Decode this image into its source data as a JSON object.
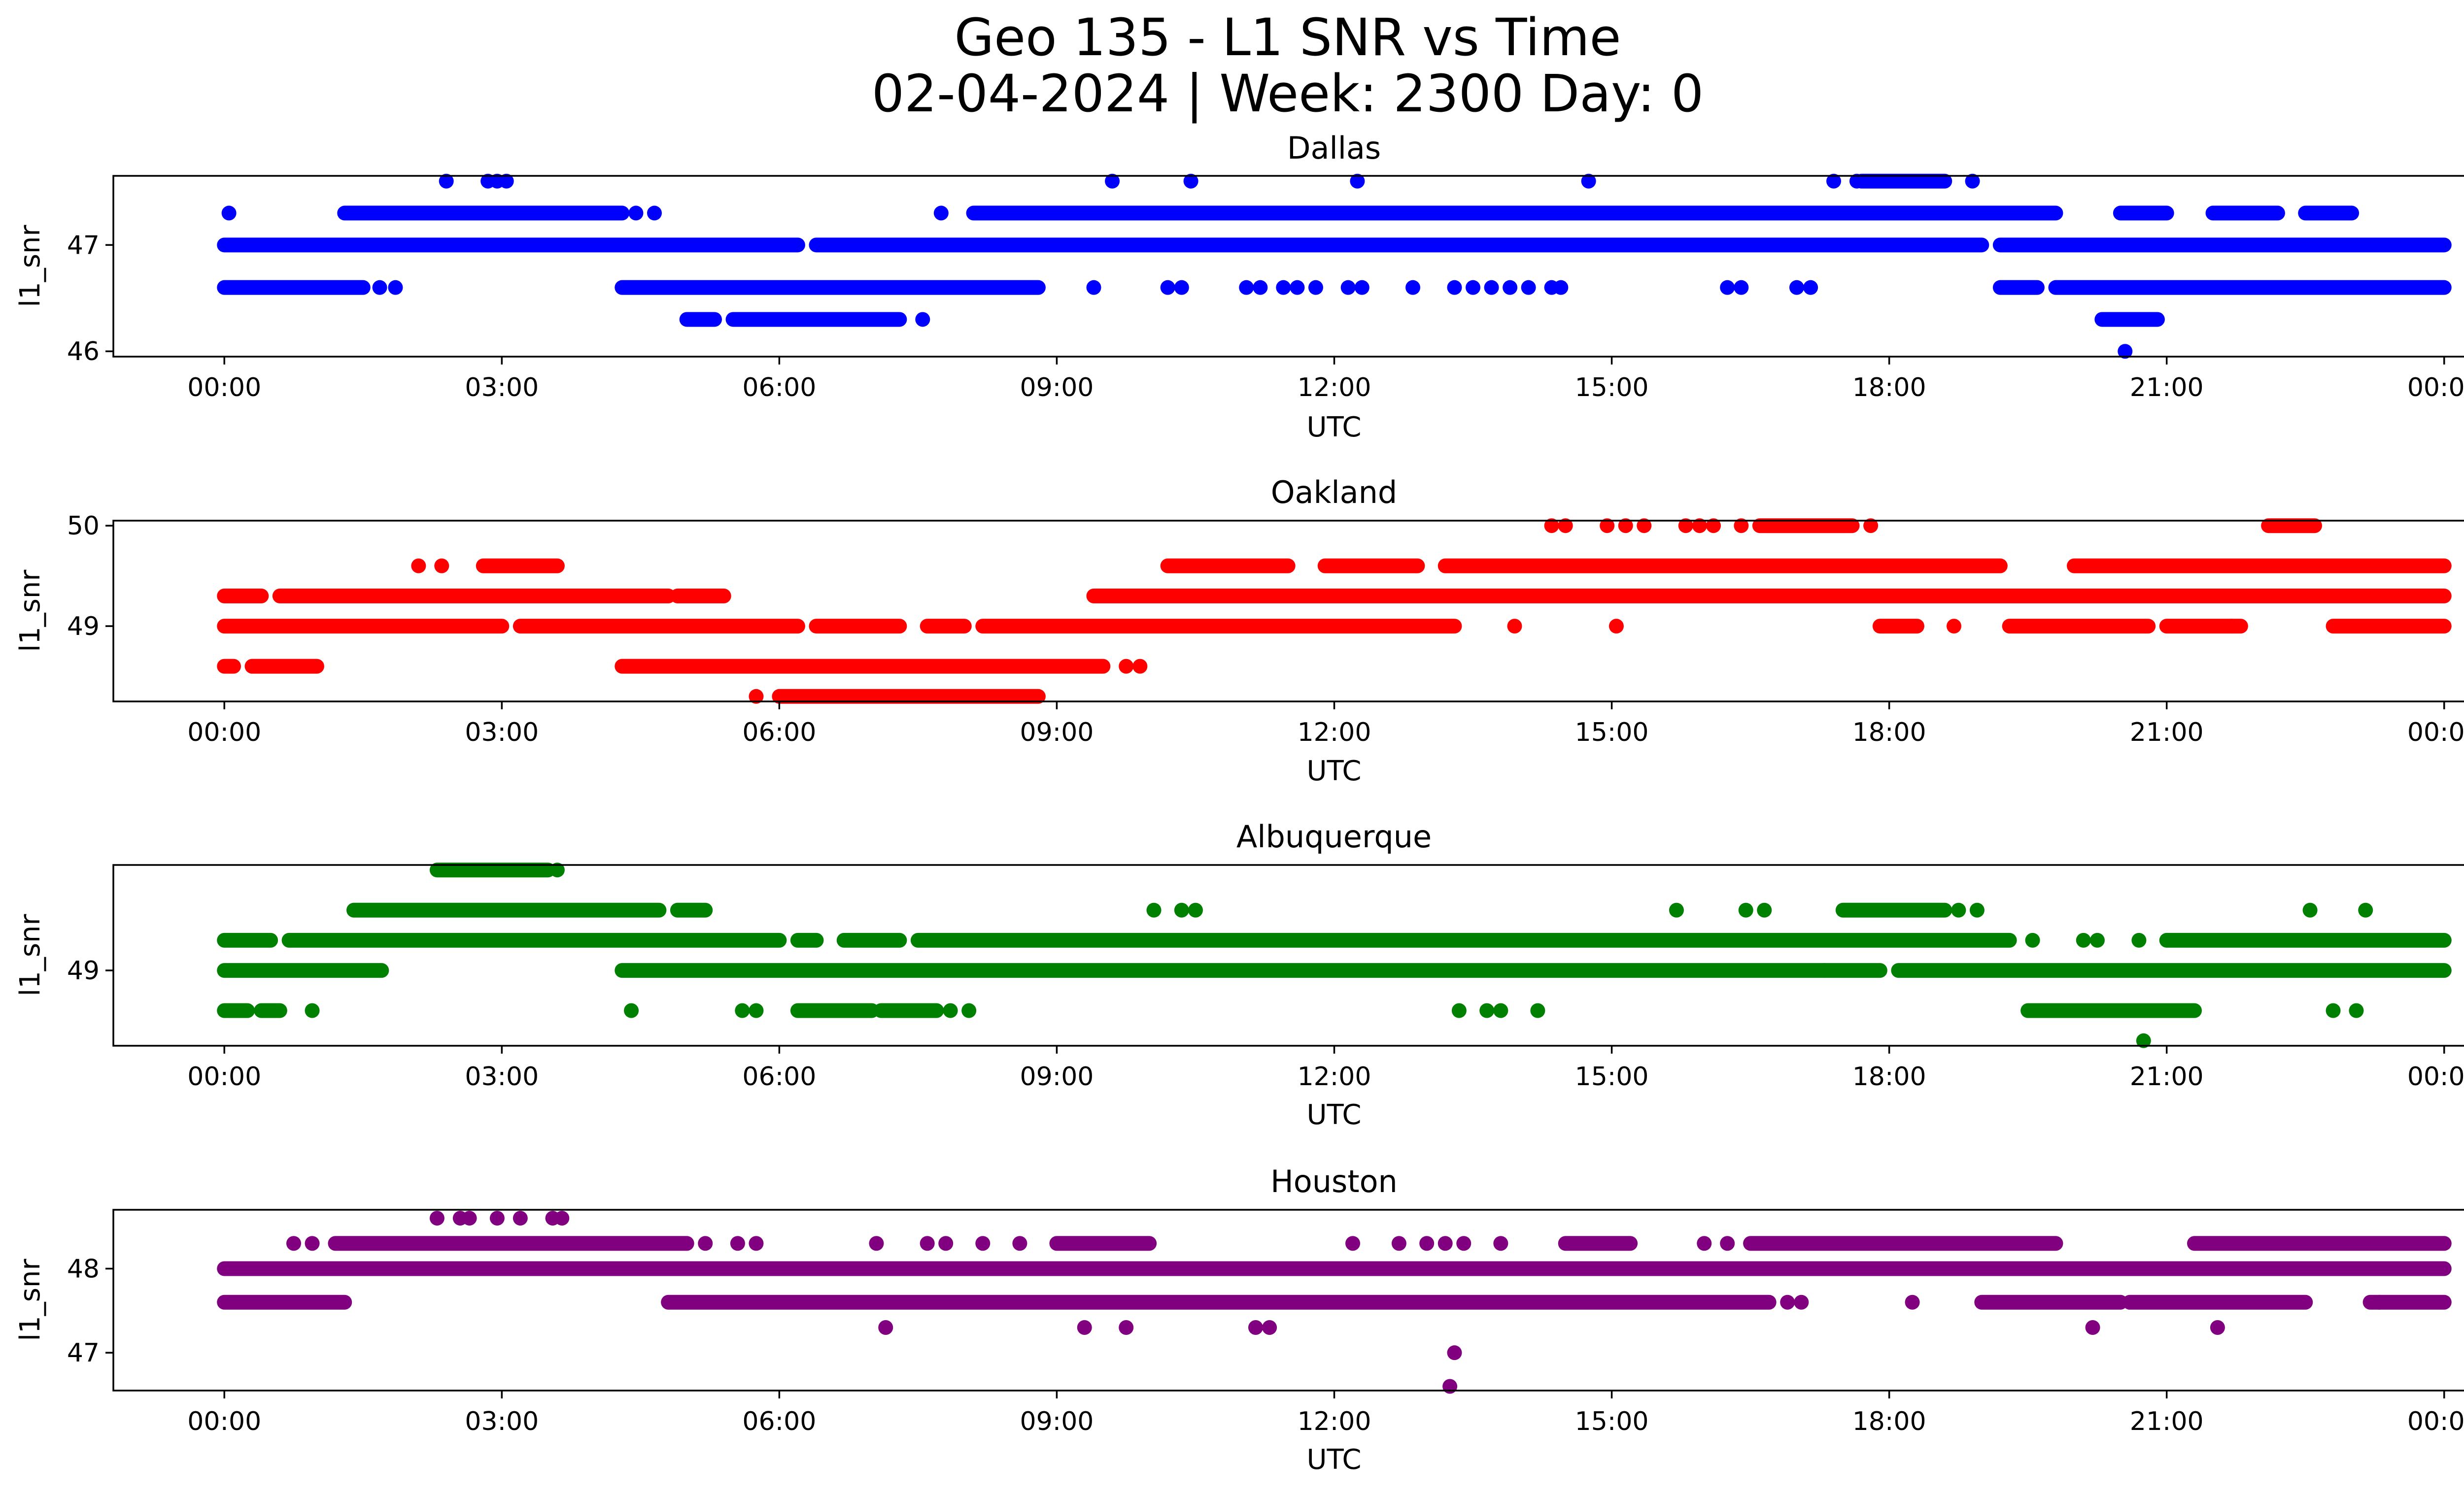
{
  "figure": {
    "title_line1": "Geo 135 - L1 SNR vs Time",
    "title_line2": "02-04-2024 | Week: 2300 Day: 0"
  },
  "chart_data": [
    {
      "type": "scatter",
      "title": "Dallas",
      "xlabel": "UTC",
      "ylabel": "l1_snr",
      "color": "#0000ff",
      "xlim_hours": [
        -1.2,
        25.2
      ],
      "ylim": [
        45.95,
        47.65
      ],
      "x_ticks": [
        "00:00",
        "03:00",
        "06:00",
        "09:00",
        "12:00",
        "15:00",
        "18:00",
        "21:00",
        "00:00"
      ],
      "y_ticks": [
        46,
        47
      ],
      "bands": [
        {
          "y": 47.0,
          "segments": [
            [
              0,
              6.2
            ],
            [
              6.4,
              19.0
            ],
            [
              19.2,
              24
            ]
          ]
        },
        {
          "y": 46.6,
          "segments": [
            [
              0,
              1.5
            ],
            [
              4.3,
              8.8
            ],
            [
              19.2,
              19.6
            ],
            [
              19.8,
              24
            ]
          ]
        },
        {
          "y": 47.3,
          "segments": [
            [
              1.3,
              4.3
            ],
            [
              8.1,
              19.8
            ],
            [
              20.5,
              21.0
            ],
            [
              21.5,
              22.2
            ],
            [
              22.5,
              23.0
            ]
          ]
        },
        {
          "y": 46.3,
          "segments": [
            [
              5.0,
              5.3
            ],
            [
              5.5,
              7.3
            ],
            [
              20.3,
              20.9
            ]
          ]
        },
        {
          "y": 47.6,
          "segments": [
            [
              17.7,
              18.6
            ]
          ]
        }
      ],
      "points": [
        {
          "x": 0.05,
          "y": 47.3
        },
        {
          "x": 1.68,
          "y": 46.6
        },
        {
          "x": 1.85,
          "y": 46.6
        },
        {
          "x": 2.4,
          "y": 47.6
        },
        {
          "x": 2.85,
          "y": 47.6
        },
        {
          "x": 2.95,
          "y": 47.6
        },
        {
          "x": 3.05,
          "y": 47.6
        },
        {
          "x": 4.45,
          "y": 47.3
        },
        {
          "x": 4.65,
          "y": 47.3
        },
        {
          "x": 5.6,
          "y": 46.3
        },
        {
          "x": 7.55,
          "y": 46.3
        },
        {
          "x": 7.75,
          "y": 47.3
        },
        {
          "x": 9.4,
          "y": 46.6
        },
        {
          "x": 9.6,
          "y": 47.6
        },
        {
          "x": 10.2,
          "y": 46.6
        },
        {
          "x": 10.35,
          "y": 46.6
        },
        {
          "x": 10.45,
          "y": 47.6
        },
        {
          "x": 11.05,
          "y": 46.6
        },
        {
          "x": 11.2,
          "y": 46.6
        },
        {
          "x": 11.45,
          "y": 46.6
        },
        {
          "x": 11.6,
          "y": 46.6
        },
        {
          "x": 11.8,
          "y": 46.6
        },
        {
          "x": 12.15,
          "y": 46.6
        },
        {
          "x": 12.3,
          "y": 46.6
        },
        {
          "x": 12.25,
          "y": 47.6
        },
        {
          "x": 12.85,
          "y": 46.6
        },
        {
          "x": 13.3,
          "y": 46.6
        },
        {
          "x": 13.5,
          "y": 46.6
        },
        {
          "x": 13.7,
          "y": 46.6
        },
        {
          "x": 13.9,
          "y": 46.6
        },
        {
          "x": 14.1,
          "y": 46.6
        },
        {
          "x": 14.35,
          "y": 46.6
        },
        {
          "x": 14.45,
          "y": 46.6
        },
        {
          "x": 14.75,
          "y": 47.6
        },
        {
          "x": 16.25,
          "y": 46.6
        },
        {
          "x": 16.4,
          "y": 46.6
        },
        {
          "x": 17.0,
          "y": 46.6
        },
        {
          "x": 17.15,
          "y": 46.6
        },
        {
          "x": 17.4,
          "y": 47.6
        },
        {
          "x": 17.65,
          "y": 47.6
        },
        {
          "x": 18.9,
          "y": 47.6
        },
        {
          "x": 20.55,
          "y": 46.0
        }
      ]
    },
    {
      "type": "scatter",
      "title": "Oakland",
      "xlabel": "UTC",
      "ylabel": "l1_snr",
      "color": "#ff0000",
      "xlim_hours": [
        -1.2,
        25.2
      ],
      "ylim": [
        48.25,
        50.05
      ],
      "x_ticks": [
        "00:00",
        "03:00",
        "06:00",
        "09:00",
        "12:00",
        "15:00",
        "18:00",
        "21:00",
        "00:00"
      ],
      "y_ticks": [
        49,
        50
      ],
      "bands": [
        {
          "y": 49.0,
          "segments": [
            [
              0,
              3.0
            ],
            [
              3.2,
              6.2
            ],
            [
              6.4,
              7.3
            ],
            [
              7.6,
              8.0
            ],
            [
              8.2,
              13.3
            ],
            [
              17.9,
              18.3
            ],
            [
              19.3,
              20.8
            ],
            [
              21.0,
              21.8
            ],
            [
              22.8,
              24
            ]
          ]
        },
        {
          "y": 49.3,
          "segments": [
            [
              0,
              0.4
            ],
            [
              0.6,
              4.8
            ],
            [
              4.9,
              5.4
            ],
            [
              9.4,
              24
            ]
          ]
        },
        {
          "y": 48.6,
          "segments": [
            [
              0,
              0.1
            ],
            [
              0.3,
              1.0
            ],
            [
              4.3,
              9.5
            ]
          ]
        },
        {
          "y": 49.6,
          "segments": [
            [
              2.8,
              3.6
            ],
            [
              10.2,
              11.5
            ],
            [
              11.9,
              12.9
            ],
            [
              13.2,
              19.2
            ],
            [
              20.0,
              24
            ]
          ]
        },
        {
          "y": 48.3,
          "segments": [
            [
              6.0,
              8.8
            ]
          ]
        },
        {
          "y": 50.0,
          "segments": [
            [
              16.6,
              17.6
            ],
            [
              22.1,
              22.6
            ]
          ]
        }
      ],
      "points": [
        {
          "x": 2.1,
          "y": 49.6
        },
        {
          "x": 2.35,
          "y": 49.6
        },
        {
          "x": 5.75,
          "y": 48.3
        },
        {
          "x": 9.75,
          "y": 48.6
        },
        {
          "x": 9.9,
          "y": 48.6
        },
        {
          "x": 13.95,
          "y": 49.0
        },
        {
          "x": 14.35,
          "y": 50.0
        },
        {
          "x": 14.5,
          "y": 50.0
        },
        {
          "x": 14.95,
          "y": 50.0
        },
        {
          "x": 15.05,
          "y": 49.0
        },
        {
          "x": 15.15,
          "y": 50.0
        },
        {
          "x": 15.35,
          "y": 50.0
        },
        {
          "x": 15.8,
          "y": 50.0
        },
        {
          "x": 15.95,
          "y": 50.0
        },
        {
          "x": 16.1,
          "y": 50.0
        },
        {
          "x": 16.4,
          "y": 50.0
        },
        {
          "x": 17.8,
          "y": 50.0
        },
        {
          "x": 18.7,
          "y": 49.0
        },
        {
          "x": 21.7,
          "y": 49.0
        }
      ]
    },
    {
      "type": "scatter",
      "title": "Albuquerque",
      "xlabel": "UTC",
      "ylabel": "l1_snr",
      "color": "#008000",
      "xlim_hours": [
        -1.2,
        25.2
      ],
      "ylim": [
        48.25,
        50.05
      ],
      "x_ticks": [
        "00:00",
        "03:00",
        "06:00",
        "09:00",
        "12:00",
        "15:00",
        "18:00",
        "21:00",
        "00:00"
      ],
      "y_ticks": [
        49
      ],
      "bands": [
        {
          "y": 49.0,
          "segments": [
            [
              0,
              1.7
            ],
            [
              4.3,
              17.9
            ],
            [
              18.1,
              24
            ]
          ]
        },
        {
          "y": 49.3,
          "segments": [
            [
              0,
              0.5
            ],
            [
              0.7,
              6.0
            ],
            [
              6.2,
              6.4
            ],
            [
              6.7,
              7.3
            ],
            [
              7.5,
              19.3
            ],
            [
              21.0,
              24
            ]
          ]
        },
        {
          "y": 48.6,
          "segments": [
            [
              0,
              0.25
            ],
            [
              0.4,
              0.6
            ],
            [
              6.2,
              7.0
            ],
            [
              7.1,
              7.7
            ],
            [
              19.5,
              21.3
            ]
          ]
        },
        {
          "y": 49.6,
          "segments": [
            [
              1.4,
              4.7
            ],
            [
              4.9,
              5.2
            ],
            [
              17.5,
              18.6
            ]
          ]
        },
        {
          "y": 50.0,
          "segments": [
            [
              2.3,
              3.5
            ]
          ]
        }
      ],
      "points": [
        {
          "x": 0.95,
          "y": 48.6
        },
        {
          "x": 4.4,
          "y": 48.6
        },
        {
          "x": 5.6,
          "y": 48.6
        },
        {
          "x": 5.75,
          "y": 48.6
        },
        {
          "x": 7.85,
          "y": 48.6
        },
        {
          "x": 8.05,
          "y": 48.6
        },
        {
          "x": 10.05,
          "y": 49.6
        },
        {
          "x": 10.35,
          "y": 49.6
        },
        {
          "x": 10.5,
          "y": 49.6
        },
        {
          "x": 3.6,
          "y": 50.0
        },
        {
          "x": 13.35,
          "y": 48.6
        },
        {
          "x": 13.65,
          "y": 48.6
        },
        {
          "x": 13.8,
          "y": 48.6
        },
        {
          "x": 14.2,
          "y": 48.6
        },
        {
          "x": 15.7,
          "y": 49.6
        },
        {
          "x": 16.45,
          "y": 49.6
        },
        {
          "x": 16.65,
          "y": 49.6
        },
        {
          "x": 17.3,
          "y": 49.0
        },
        {
          "x": 18.75,
          "y": 49.6
        },
        {
          "x": 18.95,
          "y": 49.6
        },
        {
          "x": 19.55,
          "y": 49.3
        },
        {
          "x": 20.1,
          "y": 49.3
        },
        {
          "x": 20.25,
          "y": 49.3
        },
        {
          "x": 20.7,
          "y": 49.3
        },
        {
          "x": 20.75,
          "y": 48.3
        },
        {
          "x": 22.55,
          "y": 49.6
        },
        {
          "x": 22.8,
          "y": 48.6
        },
        {
          "x": 23.05,
          "y": 48.6
        },
        {
          "x": 23.15,
          "y": 49.6
        }
      ]
    },
    {
      "type": "scatter",
      "title": "Houston",
      "xlabel": "UTC",
      "ylabel": "l1_snr",
      "color": "#800080",
      "xlim_hours": [
        -1.2,
        25.2
      ],
      "ylim": [
        46.55,
        48.7
      ],
      "x_ticks": [
        "00:00",
        "03:00",
        "06:00",
        "09:00",
        "12:00",
        "15:00",
        "18:00",
        "21:00",
        "00:00"
      ],
      "y_ticks": [
        47,
        48
      ],
      "bands": [
        {
          "y": 48.0,
          "segments": [
            [
              0,
              24
            ]
          ]
        },
        {
          "y": 48.3,
          "segments": [
            [
              1.2,
              5.0
            ],
            [
              9.0,
              10.0
            ],
            [
              14.5,
              15.2
            ],
            [
              16.5,
              19.8
            ],
            [
              21.3,
              24
            ]
          ]
        },
        {
          "y": 47.6,
          "segments": [
            [
              0,
              1.3
            ],
            [
              4.8,
              16.7
            ],
            [
              19.0,
              20.5
            ],
            [
              20.6,
              22.5
            ],
            [
              23.2,
              24
            ]
          ]
        }
      ],
      "points": [
        {
          "x": 0.75,
          "y": 48.3
        },
        {
          "x": 0.95,
          "y": 48.3
        },
        {
          "x": 5.2,
          "y": 48.3
        },
        {
          "x": 5.55,
          "y": 48.3
        },
        {
          "x": 5.75,
          "y": 48.3
        },
        {
          "x": 7.05,
          "y": 48.3
        },
        {
          "x": 7.6,
          "y": 48.3
        },
        {
          "x": 7.8,
          "y": 48.3
        },
        {
          "x": 8.2,
          "y": 48.3
        },
        {
          "x": 8.6,
          "y": 48.3
        },
        {
          "x": 2.3,
          "y": 48.6
        },
        {
          "x": 2.55,
          "y": 48.6
        },
        {
          "x": 2.65,
          "y": 48.6
        },
        {
          "x": 2.95,
          "y": 48.6
        },
        {
          "x": 3.2,
          "y": 48.6
        },
        {
          "x": 3.55,
          "y": 48.6
        },
        {
          "x": 3.65,
          "y": 48.6
        },
        {
          "x": 7.15,
          "y": 47.3
        },
        {
          "x": 9.3,
          "y": 47.3
        },
        {
          "x": 9.75,
          "y": 47.3
        },
        {
          "x": 11.15,
          "y": 47.3
        },
        {
          "x": 11.3,
          "y": 47.3
        },
        {
          "x": 12.2,
          "y": 48.3
        },
        {
          "x": 12.7,
          "y": 48.3
        },
        {
          "x": 13.0,
          "y": 48.3
        },
        {
          "x": 13.2,
          "y": 48.3
        },
        {
          "x": 13.3,
          "y": 47.0
        },
        {
          "x": 13.25,
          "y": 46.6
        },
        {
          "x": 13.4,
          "y": 48.3
        },
        {
          "x": 13.8,
          "y": 48.3
        },
        {
          "x": 16.0,
          "y": 48.3
        },
        {
          "x": 16.25,
          "y": 48.3
        },
        {
          "x": 16.9,
          "y": 47.6
        },
        {
          "x": 17.05,
          "y": 47.6
        },
        {
          "x": 18.25,
          "y": 47.6
        },
        {
          "x": 20.2,
          "y": 47.3
        },
        {
          "x": 21.55,
          "y": 47.3
        },
        {
          "x": 23.3,
          "y": 47.6
        }
      ]
    }
  ]
}
